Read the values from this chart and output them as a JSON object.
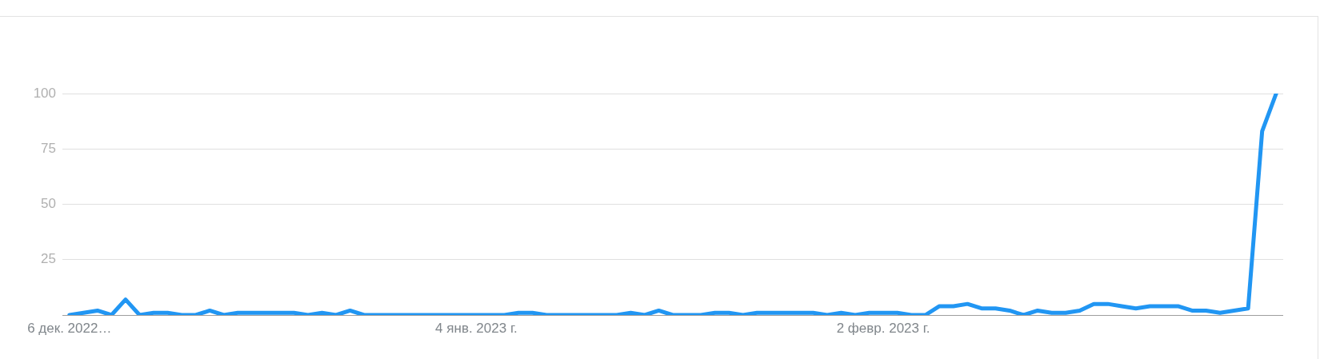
{
  "chart_data": {
    "type": "line",
    "x": [
      "2022-12-06",
      "2022-12-07",
      "2022-12-08",
      "2022-12-09",
      "2022-12-10",
      "2022-12-11",
      "2022-12-12",
      "2022-12-13",
      "2022-12-14",
      "2022-12-15",
      "2022-12-16",
      "2022-12-17",
      "2022-12-18",
      "2022-12-19",
      "2022-12-20",
      "2022-12-21",
      "2022-12-22",
      "2022-12-23",
      "2022-12-24",
      "2022-12-25",
      "2022-12-26",
      "2022-12-27",
      "2022-12-28",
      "2022-12-29",
      "2022-12-30",
      "2022-12-31",
      "2023-01-01",
      "2023-01-02",
      "2023-01-03",
      "2023-01-04",
      "2023-01-05",
      "2023-01-06",
      "2023-01-07",
      "2023-01-08",
      "2023-01-09",
      "2023-01-10",
      "2023-01-11",
      "2023-01-12",
      "2023-01-13",
      "2023-01-14",
      "2023-01-15",
      "2023-01-16",
      "2023-01-17",
      "2023-01-18",
      "2023-01-19",
      "2023-01-20",
      "2023-01-21",
      "2023-01-22",
      "2023-01-23",
      "2023-01-24",
      "2023-01-25",
      "2023-01-26",
      "2023-01-27",
      "2023-01-28",
      "2023-01-29",
      "2023-01-30",
      "2023-01-31",
      "2023-02-01",
      "2023-02-02",
      "2023-02-03",
      "2023-02-04",
      "2023-02-05",
      "2023-02-06",
      "2023-02-07",
      "2023-02-08",
      "2023-02-09",
      "2023-02-10",
      "2023-02-11",
      "2023-02-12",
      "2023-02-13",
      "2023-02-14",
      "2023-02-15",
      "2023-02-16",
      "2023-02-17",
      "2023-02-18",
      "2023-02-19",
      "2023-02-20",
      "2023-02-21",
      "2023-02-22",
      "2023-02-23",
      "2023-02-24",
      "2023-02-25",
      "2023-02-26",
      "2023-02-27",
      "2023-02-28",
      "2023-03-01",
      "2023-03-02"
    ],
    "values": [
      0,
      1,
      2,
      0,
      7,
      0,
      1,
      1,
      0,
      0,
      2,
      0,
      1,
      1,
      1,
      1,
      1,
      0,
      1,
      0,
      2,
      0,
      0,
      0,
      0,
      0,
      0,
      0,
      0,
      0,
      0,
      0,
      1,
      1,
      0,
      0,
      0,
      0,
      0,
      0,
      1,
      0,
      2,
      0,
      0,
      0,
      1,
      1,
      0,
      1,
      1,
      1,
      1,
      1,
      0,
      1,
      0,
      1,
      1,
      1,
      0,
      0,
      4,
      4,
      5,
      3,
      3,
      2,
      0,
      2,
      1,
      1,
      2,
      5,
      5,
      4,
      3,
      4,
      4,
      4,
      2,
      2,
      1,
      2,
      3,
      83,
      100
    ],
    "color": "#2196f3",
    "xlim": [
      "2022-12-05T12:00",
      "2023-03-02T12:00"
    ],
    "xticks": [
      {
        "value": "2022-12-06",
        "label": "6 дек. 2022…"
      },
      {
        "value": "2023-01-04",
        "label": "4 янв. 2023 г."
      },
      {
        "value": "2023-02-02",
        "label": "2 февр. 2023 г."
      }
    ],
    "ylim": [
      0,
      100
    ],
    "yticks": [
      {
        "value": 0,
        "label": null
      },
      25,
      50,
      75,
      100
    ],
    "grid": "y",
    "legend": false
  }
}
